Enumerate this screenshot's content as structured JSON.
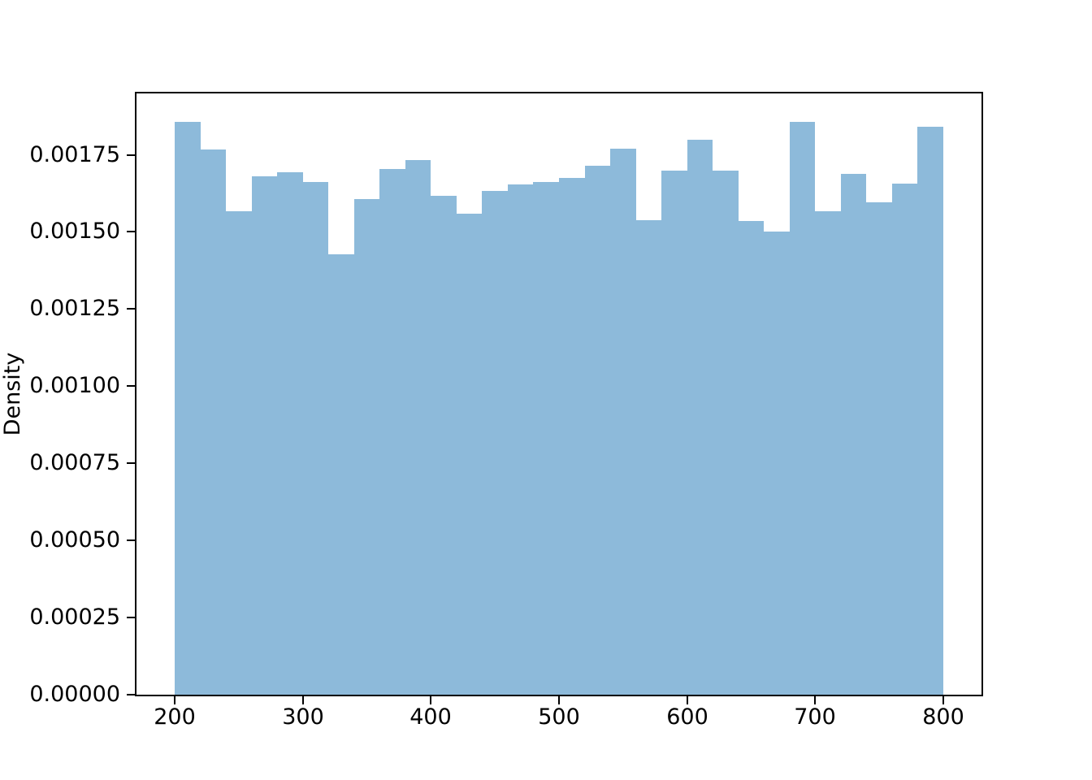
{
  "figure": {
    "background_color": "#ffffff",
    "spine_color": "#000000",
    "tick_color": "#000000",
    "text_color": "#000000"
  },
  "chart_data": {
    "type": "bar",
    "subtype": "histogram",
    "title": "",
    "xlabel": "",
    "ylabel": "Density",
    "grid": false,
    "legend": null,
    "bar_color": "#8dbada",
    "bin_edges": [
      200,
      220,
      240,
      260,
      280,
      300,
      320,
      340,
      360,
      380,
      400,
      420,
      440,
      460,
      480,
      500,
      520,
      540,
      560,
      580,
      600,
      620,
      640,
      660,
      680,
      700,
      720,
      740,
      760,
      780,
      800
    ],
    "densities": [
      0.001856,
      0.001768,
      0.001568,
      0.001681,
      0.001694,
      0.001662,
      0.001428,
      0.001607,
      0.001704,
      0.001733,
      0.001616,
      0.001558,
      0.001634,
      0.001653,
      0.001663,
      0.001676,
      0.001714,
      0.001769,
      0.001538,
      0.001699,
      0.0018,
      0.001698,
      0.001536,
      0.0015,
      0.001856,
      0.001566,
      0.001688,
      0.001596,
      0.001657,
      0.00184
    ],
    "xlim": [
      170,
      830
    ],
    "ylim": [
      0,
      0.001949
    ],
    "x_ticks": [
      200,
      300,
      400,
      500,
      600,
      700,
      800
    ],
    "x_tick_labels": [
      "200",
      "300",
      "400",
      "500",
      "600",
      "700",
      "800"
    ],
    "y_ticks": [
      0.0,
      0.00025,
      0.0005,
      0.00075,
      0.001,
      0.00125,
      0.0015,
      0.00175
    ],
    "y_tick_labels": [
      "0.00000",
      "0.00025",
      "0.00050",
      "0.00075",
      "0.00100",
      "0.00125",
      "0.00150",
      "0.00175"
    ]
  }
}
